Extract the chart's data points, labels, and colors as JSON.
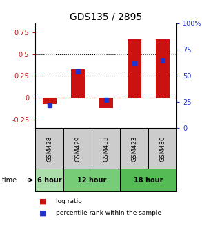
{
  "title": "GDS135 / 2895",
  "samples": [
    "GSM428",
    "GSM429",
    "GSM433",
    "GSM423",
    "GSM430"
  ],
  "time_groups": [
    {
      "label": "6 hour",
      "cols": [
        0
      ],
      "color": "#90ee90"
    },
    {
      "label": "12 hour",
      "cols": [
        1,
        2
      ],
      "color": "#66dd66"
    },
    {
      "label": "18 hour",
      "cols": [
        3,
        4
      ],
      "color": "#44cc44"
    }
  ],
  "log_ratio": [
    -0.07,
    0.32,
    -0.12,
    0.67,
    0.67
  ],
  "percentile_rank": [
    22,
    54,
    27,
    62,
    65
  ],
  "ylim_left": [
    -0.35,
    0.85
  ],
  "ylim_right": [
    0,
    100
  ],
  "yticks_left": [
    -0.25,
    0,
    0.25,
    0.5,
    0.75
  ],
  "yticks_right": [
    0,
    25,
    50,
    75,
    100
  ],
  "bar_color": "#cc1111",
  "dot_color": "#2233cc",
  "bar_width": 0.5,
  "left_label_color": "#cc1111",
  "right_label_color": "#2233cc",
  "legend_bar_label": "log ratio",
  "legend_dot_label": "percentile rank within the sample",
  "time_label": "time",
  "sample_bg": "#cccccc",
  "title_fontsize": 10
}
